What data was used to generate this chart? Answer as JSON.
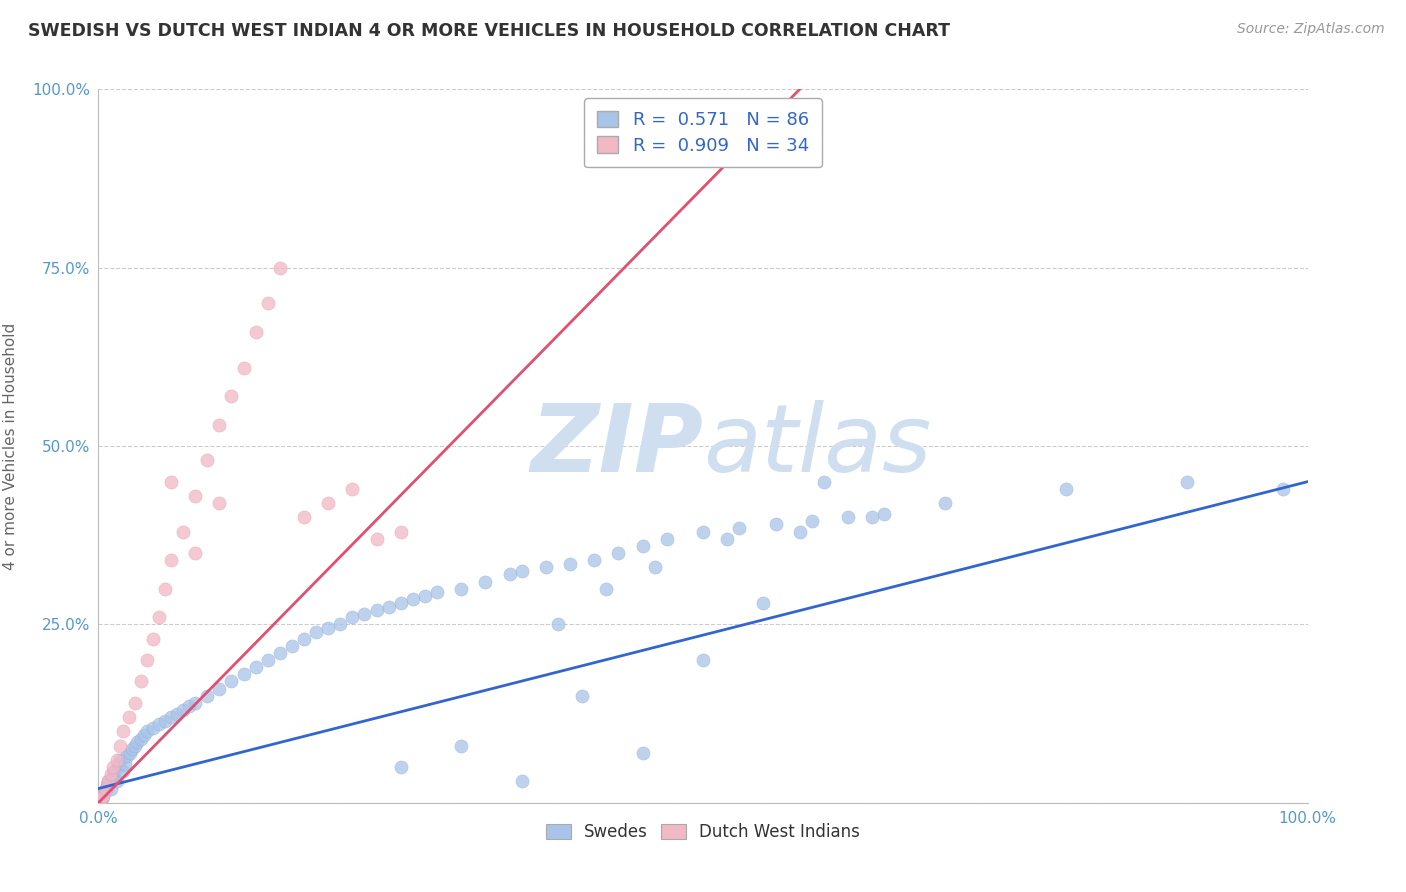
{
  "title": "SWEDISH VS DUTCH WEST INDIAN 4 OR MORE VEHICLES IN HOUSEHOLD CORRELATION CHART",
  "source": "Source: ZipAtlas.com",
  "ylabel": "4 or more Vehicles in Household",
  "xlim": [
    0,
    100
  ],
  "ylim": [
    0,
    100
  ],
  "swedes_color": "#a8c4e8",
  "dutch_color": "#f2b8c6",
  "swedes_line_color": "#3366cc",
  "dutch_line_color": "#e05070",
  "swedes_R": 0.571,
  "swedes_N": 86,
  "dutch_R": 0.909,
  "dutch_N": 34,
  "legend_text_color": "#3366cc",
  "watermark_color": "#d0dff0",
  "background_color": "#ffffff",
  "grid_color": "#cccccc",
  "tick_color": "#5599cc",
  "sw_x": [
    0.3,
    0.4,
    0.5,
    0.6,
    0.7,
    0.8,
    1.0,
    1.1,
    1.2,
    1.3,
    1.5,
    1.6,
    1.7,
    1.8,
    2.0,
    2.2,
    2.4,
    2.6,
    2.8,
    3.0,
    3.2,
    3.5,
    3.8,
    4.0,
    4.5,
    5.0,
    5.5,
    6.0,
    6.5,
    7.0,
    7.5,
    8.0,
    9.0,
    10.0,
    11.0,
    12.0,
    13.0,
    14.0,
    15.0,
    16.0,
    17.0,
    18.0,
    19.0,
    20.0,
    21.0,
    22.0,
    23.0,
    24.0,
    25.0,
    26.0,
    27.0,
    28.0,
    30.0,
    32.0,
    34.0,
    35.0,
    37.0,
    39.0,
    41.0,
    43.0,
    45.0,
    47.0,
    50.0,
    53.0,
    56.0,
    59.0,
    62.0,
    65.0,
    38.0,
    42.0,
    46.0,
    52.0,
    58.0,
    64.0,
    70.0,
    80.0,
    90.0,
    98.0,
    25.0,
    30.0,
    35.0,
    40.0,
    45.0,
    50.0,
    55.0,
    60.0
  ],
  "sw_y": [
    0.5,
    1.0,
    1.5,
    2.0,
    2.5,
    3.0,
    2.0,
    3.5,
    4.0,
    4.5,
    3.0,
    5.0,
    5.5,
    6.0,
    4.5,
    5.5,
    6.5,
    7.0,
    7.5,
    8.0,
    8.5,
    9.0,
    9.5,
    10.0,
    10.5,
    11.0,
    11.5,
    12.0,
    12.5,
    13.0,
    13.5,
    14.0,
    15.0,
    16.0,
    17.0,
    18.0,
    19.0,
    20.0,
    21.0,
    22.0,
    23.0,
    24.0,
    24.5,
    25.0,
    26.0,
    26.5,
    27.0,
    27.5,
    28.0,
    28.5,
    29.0,
    29.5,
    30.0,
    31.0,
    32.0,
    32.5,
    33.0,
    33.5,
    34.0,
    35.0,
    36.0,
    37.0,
    38.0,
    38.5,
    39.0,
    39.5,
    40.0,
    40.5,
    25.0,
    30.0,
    33.0,
    37.0,
    38.0,
    40.0,
    42.0,
    44.0,
    45.0,
    44.0,
    5.0,
    8.0,
    3.0,
    15.0,
    7.0,
    20.0,
    28.0,
    45.0
  ],
  "dw_x": [
    0.2,
    0.4,
    0.6,
    0.8,
    1.0,
    1.2,
    1.5,
    1.8,
    2.0,
    2.5,
    3.0,
    3.5,
    4.0,
    4.5,
    5.0,
    5.5,
    6.0,
    7.0,
    8.0,
    9.0,
    10.0,
    11.0,
    12.0,
    13.0,
    14.0,
    15.0,
    17.0,
    19.0,
    21.0,
    23.0,
    25.0,
    6.0,
    8.0,
    10.0
  ],
  "dw_y": [
    0.5,
    1.0,
    2.0,
    3.0,
    4.0,
    5.0,
    6.0,
    8.0,
    10.0,
    12.0,
    14.0,
    17.0,
    20.0,
    23.0,
    26.0,
    30.0,
    34.0,
    38.0,
    43.0,
    48.0,
    53.0,
    57.0,
    61.0,
    66.0,
    70.0,
    75.0,
    40.0,
    42.0,
    44.0,
    37.0,
    38.0,
    45.0,
    35.0,
    42.0
  ],
  "sw_line_x0": 0,
  "sw_line_y0": 2,
  "sw_line_x1": 100,
  "sw_line_y1": 45,
  "dw_line_x0": 0,
  "dw_line_y0": 0,
  "dw_line_x1": 58,
  "dw_line_y1": 100
}
